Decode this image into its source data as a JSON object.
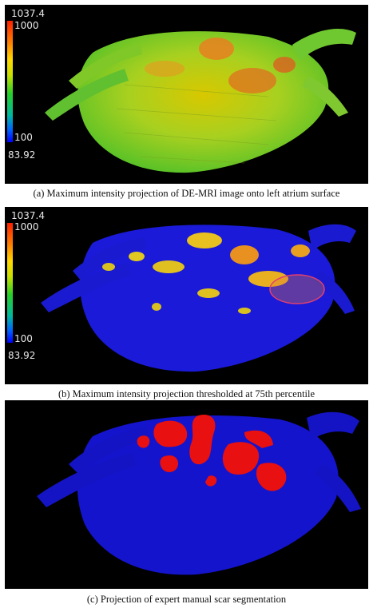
{
  "figure": {
    "panels": [
      {
        "id": "a",
        "caption": "(a) Maximum intensity projection of DE-MRI image onto left atrium surface",
        "colorbar": {
          "max_label": "1037.4",
          "upper_tick": "1000",
          "lower_tick": "100",
          "min_label": "83.92"
        },
        "colormap": [
          "#ff2000",
          "#ff8000",
          "#ffd800",
          "#c8e000",
          "#28d028",
          "#00b8a0",
          "#0060ff",
          "#0000ff"
        ]
      },
      {
        "id": "b",
        "caption": "(b) Maximum intensity projection thresholded at 75th percentile",
        "colorbar": {
          "max_label": "1037.4",
          "upper_tick": "1000",
          "lower_tick": "100",
          "min_label": "83.92"
        },
        "annotation": "ellipse-highlight"
      },
      {
        "id": "c",
        "caption": "(c) Projection of expert manual scar segmentation",
        "colors": {
          "tissue": "#1414cc",
          "scar": "#e81010"
        }
      }
    ]
  }
}
